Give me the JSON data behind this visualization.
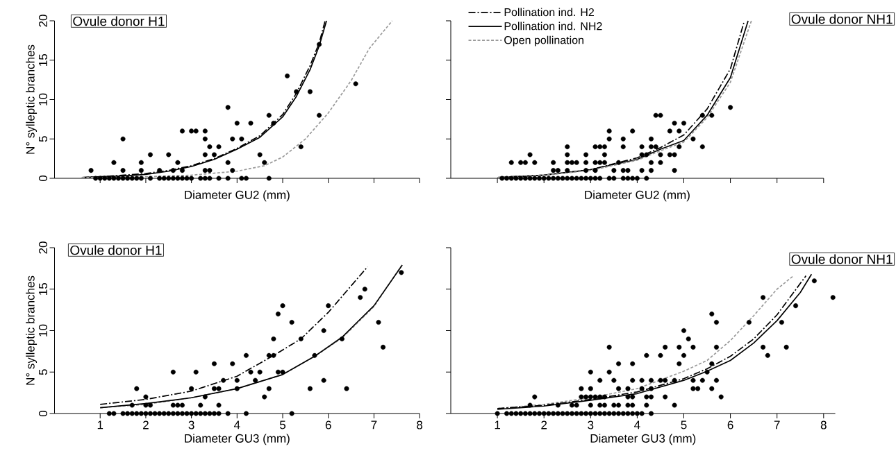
{
  "chart_data": [
    {
      "type": "scatter",
      "xlabel": "Diameter GU2 (mm)",
      "ylabel": "N° sylleptic branches",
      "annotations": [
        "Ovule donor H1"
      ],
      "xlim": [
        0,
        8
      ],
      "xticks": [
        1,
        2,
        3,
        4,
        5,
        6,
        7,
        8
      ],
      "ylim": [
        0,
        20
      ],
      "yticks": [
        0,
        5,
        10,
        15,
        20
      ],
      "tick_labels": "y",
      "marker": "circle",
      "series": [
        {
          "type": "scatter",
          "color": "#000000",
          "x": [
            0.9,
            1.0,
            1.1,
            1.2,
            1.3,
            1.4,
            1.5,
            1.6,
            1.7,
            1.8,
            1.9,
            2.1,
            2.3,
            2.4,
            2.5,
            2.6,
            2.7,
            2.8,
            2.9,
            3.0,
            3.2,
            3.3,
            3.4,
            3.6,
            3.8,
            4.1,
            4.2,
            4.7,
            0.8,
            1.3,
            1.5,
            1.5,
            1.9,
            1.9,
            2.1,
            2.3,
            2.5,
            2.6,
            2.7,
            2.8,
            2.8,
            3.0,
            3.1,
            3.3,
            3.3,
            3.3,
            3.3,
            3.4,
            3.4,
            3.5,
            3.6,
            3.8,
            3.8,
            3.9,
            3.9,
            4.0,
            4.1,
            4.3,
            4.5,
            4.6,
            4.7,
            4.8,
            5.1,
            5.3,
            5.4,
            5.6,
            5.8,
            5.8,
            6.6
          ],
          "values": [
            0,
            0,
            0,
            0,
            0,
            0,
            0,
            0,
            0,
            0,
            0,
            0,
            0,
            0,
            0,
            0,
            0,
            0,
            0,
            0,
            0,
            0,
            0,
            0,
            0,
            0,
            0,
            0,
            1,
            2,
            5,
            1,
            2,
            1,
            3,
            1,
            3,
            1,
            2,
            6,
            1,
            6,
            6,
            6,
            5,
            3,
            1,
            4,
            1,
            3,
            4,
            9,
            2,
            5,
            1,
            7,
            5,
            7,
            3,
            2,
            8,
            7,
            13,
            11,
            4,
            11,
            17,
            8,
            12
          ]
        },
        {
          "type": "line",
          "color": "#000000",
          "line_style": "dashdot",
          "marker": "none",
          "x": [
            0.6,
            1,
            1.5,
            2,
            2.5,
            3,
            3.5,
            4,
            4.5,
            5,
            5.3,
            5.6,
            5.8,
            5.93
          ],
          "values": [
            0.1,
            0.2,
            0.4,
            0.6,
            1.0,
            1.6,
            2.5,
            3.8,
            5.4,
            8.1,
            10.8,
            14.3,
            17.2,
            20
          ]
        },
        {
          "type": "line",
          "color": "#000000",
          "line_style": "solid",
          "marker": "none",
          "x": [
            0.6,
            1,
            1.5,
            2,
            2.5,
            3,
            3.5,
            4,
            4.5,
            5,
            5.3,
            5.6,
            5.8,
            5.96
          ],
          "values": [
            0.1,
            0.2,
            0.3,
            0.5,
            0.9,
            1.5,
            2.4,
            3.7,
            5.2,
            7.8,
            10.4,
            13.8,
            16.8,
            20
          ]
        },
        {
          "type": "line",
          "color": "#999999",
          "line_style": "dashed",
          "marker": "none",
          "x": [
            0.6,
            1,
            2,
            3,
            4,
            4.6,
            5,
            5.5,
            6,
            6.5,
            6.9,
            7.4
          ],
          "values": [
            0.1,
            0.1,
            0.2,
            0.4,
            0.9,
            1.6,
            2.7,
            5,
            8.3,
            12.4,
            16.5,
            20
          ]
        }
      ]
    },
    {
      "type": "scatter",
      "xlabel": "Diameter GU2 (mm)",
      "annotations": [
        "Ovule donor NH1"
      ],
      "xlim": [
        0,
        8
      ],
      "xticks": [
        1,
        2,
        3,
        4,
        5,
        6,
        7,
        8
      ],
      "ylim": [
        0,
        20
      ],
      "yticks": [
        0,
        5,
        10,
        15,
        20
      ],
      "tick_labels": false,
      "marker": "circle",
      "legend": "top left",
      "series": [
        {
          "type": "scatter",
          "color": "#000000",
          "x": [
            1.1,
            1.2,
            1.3,
            1.4,
            1.5,
            1.6,
            1.7,
            1.8,
            1.9,
            2.0,
            2.1,
            2.2,
            2.3,
            2.4,
            2.5,
            2.6,
            2.7,
            2.8,
            2.9,
            3.0,
            3.1,
            3.2,
            3.4,
            3.5,
            3.7,
            3.8,
            3.9,
            4.0,
            4.2,
            1.3,
            1.5,
            1.6,
            1.7,
            1.8,
            2.2,
            2.2,
            2.3,
            2.5,
            2.5,
            2.5,
            2.5,
            2.6,
            2.7,
            2.9,
            2.9,
            2.9,
            3.1,
            3.2,
            3.3,
            3.1,
            3.2,
            3.3,
            3.3,
            3.1,
            3.4,
            3.4,
            3.5,
            3.6,
            3.7,
            3.7,
            3.7,
            3.8,
            3.9,
            4.1,
            4.1,
            4.1,
            4.2,
            4.3,
            4.3,
            4.4,
            4.3,
            4.3,
            4.5,
            4.5,
            4.4,
            4.5,
            4.7,
            4.7,
            4.8,
            4.8,
            4.8,
            4.9,
            4.9,
            5.0,
            5.2,
            5.4,
            5.4,
            5.6,
            6.0
          ],
          "values": [
            0,
            0,
            0,
            0,
            0,
            0,
            0,
            0,
            0,
            0,
            0,
            0,
            0,
            0,
            0,
            0,
            0,
            0,
            0,
            0,
            0,
            0,
            0,
            0,
            0,
            0,
            0,
            0,
            0,
            2,
            2,
            2,
            3,
            2,
            2,
            1,
            1,
            4,
            3,
            2,
            1,
            2,
            2,
            3,
            2,
            1,
            4,
            4,
            4,
            2,
            2,
            3,
            2,
            1,
            6,
            5,
            1,
            2,
            5,
            4,
            1,
            1,
            6,
            4,
            3,
            1,
            3,
            5,
            4,
            4,
            2,
            1,
            3,
            2,
            8,
            8,
            6,
            3,
            3,
            1,
            7,
            6,
            4,
            7,
            5,
            8,
            4,
            8,
            9
          ]
        },
        {
          "type": "line",
          "name": "Pollination ind. H2",
          "color": "#000000",
          "line_style": "dashdot",
          "marker": "none",
          "x": [
            1,
            2,
            3,
            4,
            4.5,
            5,
            5.5,
            6,
            6.3
          ],
          "values": [
            0.1,
            0.4,
            1.1,
            2.6,
            3.9,
            5.5,
            8.8,
            13.9,
            20
          ]
        },
        {
          "type": "line",
          "name": "Pollination ind. NH2",
          "color": "#000000",
          "line_style": "solid",
          "marker": "none",
          "x": [
            1,
            2,
            3,
            4,
            4.5,
            5,
            5.5,
            6,
            6.38
          ],
          "values": [
            0.1,
            0.4,
            1.1,
            2.4,
            3.7,
            4.8,
            8.0,
            12.8,
            20
          ]
        },
        {
          "type": "line",
          "name": "Open pollination",
          "color": "#999999",
          "line_style": "dashed",
          "marker": "none",
          "x": [
            1,
            2,
            3,
            4,
            4.5,
            5,
            5.5,
            6,
            6.45
          ],
          "values": [
            0.1,
            0.4,
            1.0,
            2.3,
            3.5,
            4.6,
            7.7,
            12.2,
            20
          ]
        }
      ]
    },
    {
      "type": "scatter",
      "xlabel": "Diameter GU3 (mm)",
      "ylabel": "N° sylleptic branches",
      "annotations": [
        "Ovule donor H1"
      ],
      "xlim": [
        0,
        8
      ],
      "xticks": [
        1,
        2,
        3,
        4,
        5,
        6,
        7,
        8
      ],
      "ylim": [
        0,
        20
      ],
      "yticks": [
        0,
        5,
        10,
        15,
        20
      ],
      "marker": "circle",
      "series": [
        {
          "type": "scatter",
          "color": "#000000",
          "x": [
            1.2,
            1.3,
            1.5,
            1.6,
            1.7,
            1.8,
            1.9,
            2.0,
            2.1,
            2.2,
            2.3,
            2.4,
            2.5,
            2.6,
            2.7,
            2.8,
            2.9,
            3.0,
            3.1,
            3.2,
            3.3,
            3.4,
            3.5,
            3.6,
            3.8,
            4.2,
            5.2,
            1.7,
            1.8,
            2.0,
            2.0,
            2.1,
            2.6,
            2.6,
            2.7,
            2.8,
            3.0,
            3.1,
            3.2,
            3.3,
            3.5,
            3.5,
            3.6,
            3.6,
            3.7,
            3.9,
            4.0,
            4.0,
            4.2,
            4.3,
            4.4,
            4.5,
            4.6,
            4.7,
            4.7,
            4.8,
            4.8,
            4.9,
            5.0,
            4.9,
            5.0,
            5.2,
            5.4,
            5.6,
            5.7,
            5.9,
            5.9,
            6.0,
            6.3,
            6.4,
            6.7,
            6.8,
            7.1,
            7.2,
            7.6
          ],
          "values": [
            0,
            0,
            0,
            0,
            0,
            0,
            0,
            0,
            0,
            0,
            0,
            0,
            0,
            0,
            0,
            0,
            0,
            0,
            0,
            0,
            0,
            0,
            0,
            0,
            0,
            0,
            0,
            1,
            3,
            2,
            1,
            1,
            5,
            1,
            1,
            1,
            3,
            5,
            1,
            2,
            6,
            3,
            3,
            1,
            4,
            6,
            4,
            3,
            7,
            5,
            4,
            5,
            2,
            7,
            3,
            7,
            9,
            12,
            13,
            5,
            5,
            11,
            9,
            3,
            7,
            10,
            4,
            13,
            9,
            3,
            14,
            15,
            11,
            8,
            17
          ]
        },
        {
          "type": "line",
          "color": "#000000",
          "line_style": "dashdot",
          "marker": "none",
          "x": [
            1,
            2,
            3,
            4,
            4.8,
            5.4,
            6,
            6.86
          ],
          "values": [
            1.1,
            1.7,
            2.7,
            4.5,
            7.0,
            9.0,
            12.2,
            17.7
          ]
        },
        {
          "type": "line",
          "color": "#999999",
          "line_style": "dashed",
          "marker": "none",
          "x": [
            1,
            2,
            3,
            4,
            5,
            5.7,
            6.3,
            7,
            7.6
          ],
          "values": [
            0.7,
            1.1,
            1.9,
            3.0,
            4.7,
            6.9,
            9.1,
            12.9,
            17.8
          ]
        },
        {
          "type": "line",
          "color": "#000000",
          "line_style": "solid",
          "marker": "none",
          "x": [
            1,
            2,
            3,
            4,
            5,
            5.7,
            6.3,
            7,
            7.62
          ],
          "values": [
            0.7,
            1.2,
            1.9,
            3.0,
            4.7,
            6.9,
            9.2,
            13,
            17.9
          ]
        }
      ]
    },
    {
      "type": "scatter",
      "xlabel": "Diameter GU3 (mm)",
      "annotations": [
        "Ovule donor NH1"
      ],
      "xlim": [
        0,
        8.25
      ],
      "xticks": [
        1,
        2,
        3,
        4,
        5,
        6,
        7,
        8
      ],
      "ylim": [
        0,
        20
      ],
      "yticks": [
        0,
        5,
        10,
        15,
        20
      ],
      "tick_labels": "x",
      "marker": "circle",
      "series": [
        {
          "type": "scatter",
          "color": "#000000",
          "x": [
            1.0,
            1.2,
            1.3,
            1.4,
            1.5,
            1.6,
            1.7,
            1.8,
            1.9,
            2.0,
            2.1,
            2.2,
            2.3,
            2.4,
            2.5,
            2.6,
            2.7,
            2.8,
            2.9,
            3.0,
            3.1,
            3.2,
            3.3,
            3.4,
            3.5,
            3.6,
            3.7,
            3.8,
            3.9,
            4.0,
            4.1,
            4.3,
            1.7,
            1.8,
            2.3,
            2.6,
            2.7,
            2.8,
            2.8,
            2.9,
            3.0,
            3.0,
            3.0,
            3.0,
            3.1,
            3.2,
            3.2,
            3.2,
            3.3,
            3.3,
            3.4,
            3.4,
            3.5,
            3.5,
            3.6,
            3.6,
            3.6,
            3.8,
            3.8,
            3.8,
            3.9,
            3.9,
            3.9,
            3.9,
            4.1,
            4.1,
            4.2,
            4.2,
            4.2,
            4.3,
            4.3,
            4.3,
            4.5,
            4.5,
            4.6,
            4.6,
            4.6,
            4.8,
            4.8,
            4.9,
            4.9,
            5.0,
            5.0,
            5.1,
            5.2,
            5.2,
            5.2,
            5.3,
            5.4,
            5.5,
            5.6,
            5.6,
            5.6,
            5.7,
            5.7,
            5.7,
            5.8,
            6.4,
            6.7,
            6.7,
            6.8,
            7.1,
            7.2,
            7.4,
            7.8,
            8.2
          ],
          "values": [
            0,
            0,
            0,
            0,
            0,
            0,
            0,
            0,
            0,
            0,
            0,
            0,
            0,
            0,
            0,
            0,
            0,
            0,
            0,
            0,
            0,
            0,
            0,
            0,
            0,
            0,
            0,
            0,
            0,
            0,
            0,
            0,
            1,
            2,
            1,
            1,
            1,
            3,
            2,
            2,
            5,
            3,
            2,
            1,
            2,
            4,
            2,
            1,
            2,
            1,
            8,
            5,
            4,
            1,
            6,
            3,
            1,
            3,
            2,
            1,
            6,
            4,
            2,
            1,
            4,
            3,
            7,
            2,
            1,
            4,
            3,
            2,
            7,
            4,
            8,
            4,
            2,
            4,
            1,
            8,
            6,
            10,
            7,
            9,
            8,
            4,
            3,
            3,
            4,
            5,
            12,
            6,
            3,
            11,
            8,
            4,
            2,
            11,
            14,
            8,
            7,
            11,
            8,
            13,
            16,
            14
          ]
        },
        {
          "type": "line",
          "color": "#999999",
          "line_style": "dashed",
          "marker": "none",
          "x": [
            1,
            2,
            3,
            4,
            5,
            5.5,
            6,
            6.5,
            7,
            7.35
          ],
          "values": [
            0.6,
            1.1,
            1.9,
            3.0,
            5.1,
            6.4,
            8.8,
            11.8,
            15.0,
            16.6
          ]
        },
        {
          "type": "line",
          "color": "#000000",
          "line_style": "dashdot",
          "marker": "none",
          "x": [
            1,
            2,
            3,
            4,
            5,
            5.5,
            6,
            6.5,
            7,
            7.62
          ],
          "values": [
            0.6,
            1.0,
            1.7,
            2.6,
            4.2,
            5.4,
            6.9,
            9.0,
            11.9,
            16.6
          ]
        },
        {
          "type": "line",
          "color": "#000000",
          "line_style": "solid",
          "marker": "none",
          "x": [
            1,
            2,
            3,
            4,
            5,
            5.5,
            6,
            6.5,
            7,
            7.5,
            7.74
          ],
          "values": [
            0.5,
            0.9,
            1.6,
            2.4,
            4.0,
            5.1,
            6.4,
            8.5,
            11.2,
            14.6,
            16.8
          ]
        }
      ]
    }
  ]
}
